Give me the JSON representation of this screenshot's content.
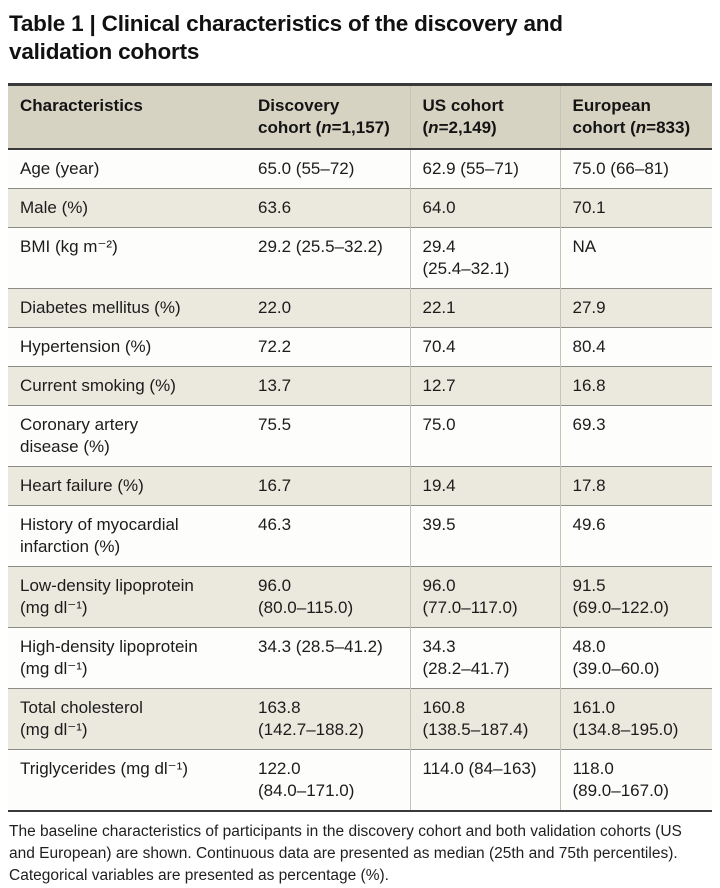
{
  "title": "Table 1 | Clinical characteristics of the discovery and validation cohorts",
  "colors": {
    "header_bg": "#d7d3c3",
    "shaded_row_bg": "#ebe8dd",
    "rule_dark": "#3a3a3a",
    "rule_light": "#8c8c86",
    "column_divider": "#c6c4b9"
  },
  "table": {
    "header": {
      "characteristics": "Characteristics",
      "cohorts": [
        {
          "pre": "Discovery\ncohort (",
          "n": "n",
          "post": "=1,157)"
        },
        {
          "pre": "US cohort\n(",
          "n": "n",
          "post": "=2,149)"
        },
        {
          "pre": "European\ncohort (",
          "n": "n",
          "post": "=833)"
        }
      ]
    },
    "rows": [
      {
        "label": "Age (year)",
        "discovery": "65.0 (55–72)",
        "us": "62.9 (55–71)",
        "european": "75.0 (66–81)",
        "shaded": false
      },
      {
        "label": "Male (%)",
        "discovery": "63.6",
        "us": "64.0",
        "european": "70.1",
        "shaded": true
      },
      {
        "label": "BMI (kg m⁻²)",
        "discovery": "29.2 (25.5–32.2)",
        "us": "29.4\n(25.4–32.1)",
        "european": "NA",
        "shaded": false
      },
      {
        "label": "Diabetes mellitus (%)",
        "discovery": "22.0",
        "us": "22.1",
        "european": "27.9",
        "shaded": true
      },
      {
        "label": "Hypertension (%)",
        "discovery": "72.2",
        "us": "70.4",
        "european": "80.4",
        "shaded": false
      },
      {
        "label": "Current smoking (%)",
        "discovery": "13.7",
        "us": "12.7",
        "european": "16.8",
        "shaded": true
      },
      {
        "label": "Coronary artery\ndisease (%)",
        "discovery": "75.5",
        "us": "75.0",
        "european": "69.3",
        "shaded": false
      },
      {
        "label": "Heart failure (%)",
        "discovery": "16.7",
        "us": "19.4",
        "european": "17.8",
        "shaded": true
      },
      {
        "label": "History of myocardial\ninfarction (%)",
        "discovery": "46.3",
        "us": "39.5",
        "european": "49.6",
        "shaded": false
      },
      {
        "label": "Low-density lipoprotein\n(mg dl⁻¹)",
        "discovery": "96.0\n(80.0–115.0)",
        "us": "96.0\n(77.0–117.0)",
        "european": "91.5\n(69.0–122.0)",
        "shaded": true
      },
      {
        "label": "High-density lipoprotein\n(mg dl⁻¹)",
        "discovery": "34.3 (28.5–41.2)",
        "us": "34.3\n(28.2–41.7)",
        "european": "48.0\n(39.0–60.0)",
        "shaded": false
      },
      {
        "label": "Total cholesterol\n(mg dl⁻¹)",
        "discovery": "163.8\n(142.7–188.2)",
        "us": "160.8\n(138.5–187.4)",
        "european": "161.0\n(134.8–195.0)",
        "shaded": true
      },
      {
        "label": "Triglycerides (mg dl⁻¹)",
        "discovery": "122.0\n(84.0–171.0)",
        "us": "114.0 (84–163)",
        "european": "118.0\n(89.0–167.0)",
        "shaded": false
      }
    ]
  },
  "footnote": "The baseline characteristics of participants in the discovery cohort and both validation cohorts (US and European) are shown. Continuous data are presented as median (25th and 75th percentiles). Categorical variables are presented as percentage (%)."
}
